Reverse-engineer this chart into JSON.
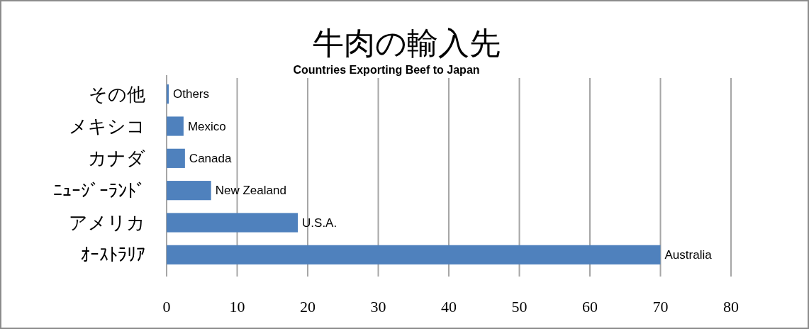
{
  "chart_data": {
    "type": "bar",
    "orientation": "horizontal",
    "title": "牛肉の輸入先",
    "subtitle": "Countries Exporting Beef to Japan",
    "categories": [
      "その他",
      "メキシコ",
      "カナダ",
      "ﾆｭｰｼﾞｰﾗﾝﾄﾞ",
      "アメリカ",
      "ｵｰｽﾄﾗﾘｱ"
    ],
    "values": [
      0.3,
      2.4,
      2.6,
      6.3,
      18.6,
      70
    ],
    "value_labels": [
      "Others",
      "Mexico",
      "Canada",
      "New Zealand",
      "U.S.A.",
      "Australia"
    ],
    "color": "#4f81bd",
    "xlim": [
      0,
      80
    ],
    "xticks": [
      0,
      10,
      20,
      30,
      40,
      50,
      60,
      70,
      80
    ],
    "grid": "x"
  }
}
